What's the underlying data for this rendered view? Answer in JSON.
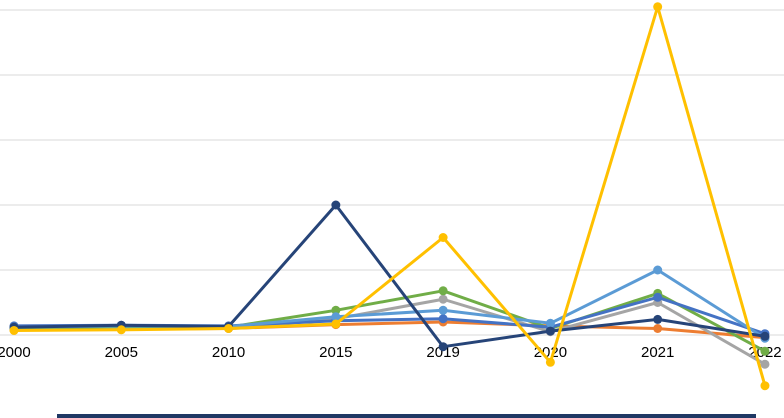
{
  "chart_data": {
    "type": "line",
    "title": "",
    "xlabel": "",
    "ylabel": "",
    "categories": [
      "2000",
      "2005",
      "2010",
      "2015",
      "2019",
      "2020",
      "2021",
      "2022"
    ],
    "series": [
      {
        "name": "orange",
        "color": "#ED7D31",
        "values": [
          0.08,
          0.09,
          0.1,
          0.16,
          0.2,
          0.14,
          0.1,
          -0.04
        ]
      },
      {
        "name": "gray",
        "color": "#A5A5A5",
        "values": [
          0.09,
          0.1,
          0.1,
          0.25,
          0.55,
          0.05,
          0.5,
          -0.45
        ]
      },
      {
        "name": "green",
        "color": "#70AD47",
        "values": [
          0.1,
          0.13,
          0.12,
          0.38,
          0.68,
          0.1,
          0.64,
          -0.25
        ]
      },
      {
        "name": "blue",
        "color": "#4472C4",
        "values": [
          0.14,
          0.15,
          0.14,
          0.22,
          0.25,
          0.12,
          0.58,
          0.02
        ]
      },
      {
        "name": "light-blue",
        "color": "#5B9BD5",
        "values": [
          0.12,
          0.14,
          0.13,
          0.28,
          0.38,
          0.18,
          1.0,
          -0.05
        ]
      },
      {
        "name": "navy",
        "color": "#264478",
        "values": [
          0.12,
          0.15,
          0.13,
          2.0,
          -0.18,
          0.06,
          0.24,
          -0.02
        ]
      },
      {
        "name": "gold",
        "color": "#FFC000",
        "values": [
          0.07,
          0.08,
          0.1,
          0.17,
          1.5,
          -0.42,
          5.05,
          -0.78
        ]
      }
    ],
    "ylim": [
      -1,
      5
    ],
    "gridline_values": [
      0,
      1,
      2,
      3,
      4,
      5
    ],
    "grid_color": "#D9D9D9",
    "axis_label_color": "#000000",
    "background": "#FFFFFF",
    "legend_position": "none",
    "marker": "circle"
  },
  "footer": {
    "bar_color": "#1F3864"
  }
}
